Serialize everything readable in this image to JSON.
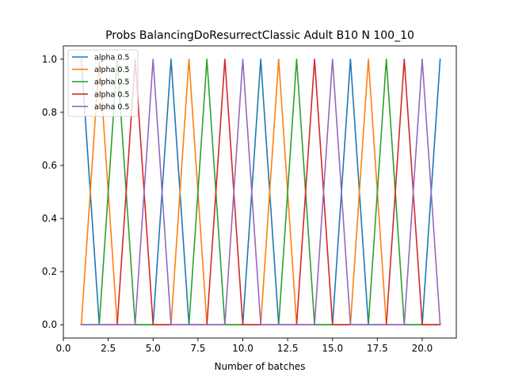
{
  "chart_data": {
    "type": "line",
    "title": "Probs BalancingDoResurrectClassic Adult B10 N 100_10",
    "xlabel": "Number of batches",
    "ylabel": "",
    "xlim": [
      0.0,
      21.9
    ],
    "ylim": [
      -0.05,
      1.05
    ],
    "xticks": [
      0.0,
      2.5,
      5.0,
      7.5,
      10.0,
      12.5,
      15.0,
      17.5,
      20.0
    ],
    "xtick_labels": [
      "0.0",
      "2.5",
      "5.0",
      "7.5",
      "10.0",
      "12.5",
      "15.0",
      "17.5",
      "20.0"
    ],
    "yticks": [
      0.0,
      0.2,
      0.4,
      0.6,
      0.8,
      1.0
    ],
    "ytick_labels": [
      "0.0",
      "0.2",
      "0.4",
      "0.6",
      "0.8",
      "1.0"
    ],
    "legend_position": "top-left",
    "grid": false,
    "x": [
      1,
      2,
      3,
      4,
      5,
      6,
      7,
      8,
      9,
      10,
      11,
      12,
      13,
      14,
      15,
      16,
      17,
      18,
      19,
      20,
      21
    ],
    "series": [
      {
        "name": "alpha 0.5",
        "color": "#1f77b4",
        "values": [
          1,
          0,
          0,
          0,
          0,
          1,
          0,
          0,
          0,
          0,
          1,
          0,
          0,
          0,
          0,
          1,
          0,
          0,
          0,
          0,
          1
        ]
      },
      {
        "name": "alpha 0.5",
        "color": "#ff7f0e",
        "values": [
          0,
          1,
          0,
          0,
          0,
          0,
          1,
          0,
          0,
          0,
          0,
          1,
          0,
          0,
          0,
          0,
          1,
          0,
          0,
          0,
          0
        ]
      },
      {
        "name": "alpha 0.5",
        "color": "#2ca02c",
        "values": [
          0,
          0,
          1,
          0,
          0,
          0,
          0,
          1,
          0,
          0,
          0,
          0,
          1,
          0,
          0,
          0,
          0,
          1,
          0,
          0,
          0
        ]
      },
      {
        "name": "alpha 0.5",
        "color": "#d62728",
        "values": [
          0,
          0,
          0,
          1,
          0,
          0,
          0,
          0,
          1,
          0,
          0,
          0,
          0,
          1,
          0,
          0,
          0,
          0,
          1,
          0,
          0
        ]
      },
      {
        "name": "alpha 0.5",
        "color": "#9467bd",
        "values": [
          0,
          0,
          0,
          0,
          1,
          0,
          0,
          0,
          0,
          1,
          0,
          0,
          0,
          0,
          1,
          0,
          0,
          0,
          0,
          1,
          0
        ]
      }
    ]
  }
}
